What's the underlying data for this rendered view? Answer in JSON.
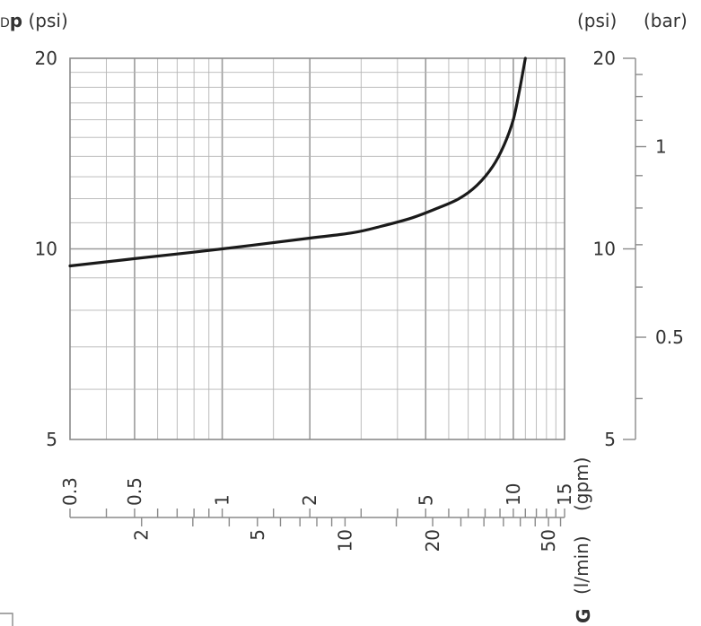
{
  "chart_data": {
    "type": "line",
    "scale": "log-log",
    "grid": true,
    "y_label_prefix": "D",
    "y_label_bold": "p",
    "y_label_unit": "(psi)",
    "right_psi_label": "(psi)",
    "right_bar_label": "(bar)",
    "gpm_label": "(gpm)",
    "lmin_label": "(l/min)",
    "g_label": "G",
    "y_ticks": [
      "20",
      "10",
      "5"
    ],
    "right_psi_ticks": [
      "20",
      "10",
      "5"
    ],
    "bar_ticks": [
      "1",
      "0.5"
    ],
    "gpm_ticks": [
      "0.3",
      "0.5",
      "1",
      "2",
      "5",
      "10",
      "15"
    ],
    "lmin_ticks": [
      "2",
      "5",
      "10",
      "20",
      "50"
    ],
    "xlim_gpm": [
      0.3,
      15
    ],
    "ylim_psi": [
      5,
      20
    ],
    "series": [
      {
        "x_gpm": [
          0.3,
          0.5,
          1,
          2,
          2.8,
          3.5,
          4.5,
          5.5,
          6.5,
          7.5,
          8.5,
          9.3,
          10,
          10.5,
          11
        ],
        "y_psi": [
          9.4,
          9.65,
          10.0,
          10.4,
          10.6,
          10.85,
          11.2,
          11.6,
          12.0,
          12.6,
          13.5,
          14.6,
          16.0,
          17.8,
          20
        ]
      }
    ]
  }
}
